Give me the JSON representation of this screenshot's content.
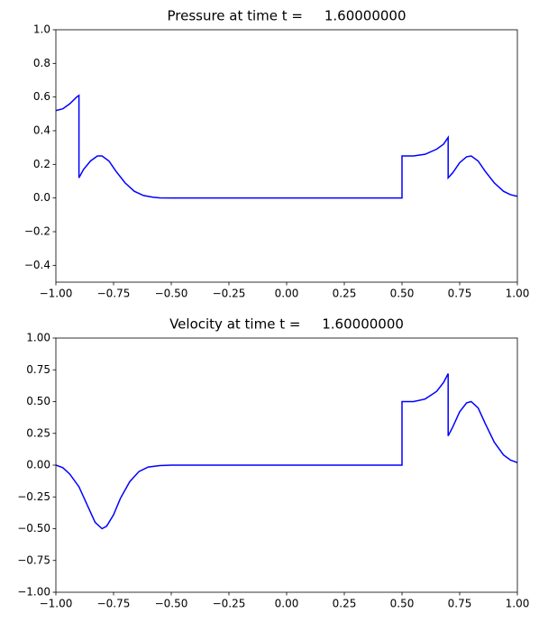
{
  "chart_data": [
    {
      "type": "line",
      "title": "Pressure at time t =     1.60000000",
      "color": "#0000ff",
      "x": [
        -1.0,
        -0.97,
        -0.94,
        -0.91,
        -0.9,
        -0.9,
        -0.88,
        -0.85,
        -0.82,
        -0.8,
        -0.77,
        -0.74,
        -0.7,
        -0.66,
        -0.62,
        -0.58,
        -0.55,
        -0.5,
        0.5,
        0.5,
        0.55,
        0.6,
        0.65,
        0.68,
        0.7,
        0.7,
        0.72,
        0.75,
        0.78,
        0.8,
        0.83,
        0.86,
        0.9,
        0.94,
        0.97,
        1.0
      ],
      "values": [
        0.52,
        0.53,
        0.56,
        0.6,
        0.61,
        0.12,
        0.17,
        0.22,
        0.25,
        0.25,
        0.22,
        0.16,
        0.09,
        0.04,
        0.015,
        0.005,
        0.001,
        0,
        0,
        0.25,
        0.25,
        0.26,
        0.29,
        0.32,
        0.36,
        0.12,
        0.15,
        0.21,
        0.245,
        0.25,
        0.22,
        0.16,
        0.09,
        0.04,
        0.02,
        0.01
      ],
      "xlim": [
        -1.0,
        1.0
      ],
      "xticks": [
        {
          "value": -1.0,
          "label": "−1.00"
        },
        {
          "value": -0.75,
          "label": "−0.75"
        },
        {
          "value": -0.5,
          "label": "−0.50"
        },
        {
          "value": -0.25,
          "label": "−0.25"
        },
        {
          "value": 0,
          "label": "0.00"
        },
        0.25,
        {
          "value": 0.5,
          "label": "0.50"
        },
        0.75,
        {
          "value": 1.0,
          "label": "1.00"
        }
      ],
      "ylim": [
        -0.5,
        1.0
      ],
      "yticks": [
        {
          "value": -0.4,
          "label": "−0.4"
        },
        {
          "value": -0.2,
          "label": "−0.2"
        },
        {
          "value": 0,
          "label": "0.0"
        },
        0.2,
        0.4,
        0.6,
        0.8,
        {
          "value": 1.0,
          "label": "1.0"
        }
      ]
    },
    {
      "type": "line",
      "title": "Velocity at time t =     1.60000000",
      "color": "#0000ff",
      "x": [
        -1.0,
        -0.97,
        -0.94,
        -0.9,
        -0.86,
        -0.83,
        -0.8,
        -0.78,
        -0.75,
        -0.72,
        -0.68,
        -0.64,
        -0.6,
        -0.55,
        -0.5,
        0.5,
        0.5,
        0.55,
        0.6,
        0.65,
        0.68,
        0.7,
        0.7,
        0.72,
        0.75,
        0.78,
        0.8,
        0.83,
        0.86,
        0.9,
        0.94,
        0.97,
        1.0
      ],
      "values": [
        0,
        -0.02,
        -0.07,
        -0.17,
        -0.33,
        -0.45,
        -0.5,
        -0.48,
        -0.39,
        -0.26,
        -0.13,
        -0.05,
        -0.015,
        -0.004,
        0,
        0,
        0.5,
        0.5,
        0.52,
        0.58,
        0.65,
        0.72,
        0.23,
        0.3,
        0.42,
        0.49,
        0.5,
        0.45,
        0.33,
        0.18,
        0.08,
        0.04,
        0.02
      ],
      "xlim": [
        -1.0,
        1.0
      ],
      "xticks": [
        {
          "value": -1.0,
          "label": "−1.00"
        },
        {
          "value": -0.75,
          "label": "−0.75"
        },
        {
          "value": -0.5,
          "label": "−0.50"
        },
        {
          "value": -0.25,
          "label": "−0.25"
        },
        {
          "value": 0,
          "label": "0.00"
        },
        0.25,
        {
          "value": 0.5,
          "label": "0.50"
        },
        0.75,
        {
          "value": 1.0,
          "label": "1.00"
        }
      ],
      "ylim": [
        -1.0,
        1.0
      ],
      "yticks": [
        {
          "value": -1.0,
          "label": "−1.00"
        },
        {
          "value": -0.75,
          "label": "−0.75"
        },
        {
          "value": -0.5,
          "label": "−0.50"
        },
        {
          "value": -0.25,
          "label": "−0.25"
        },
        {
          "value": 0,
          "label": "0.00"
        },
        0.25,
        {
          "value": 0.5,
          "label": "0.50"
        },
        0.75,
        {
          "value": 1.0,
          "label": "1.00"
        }
      ]
    }
  ]
}
